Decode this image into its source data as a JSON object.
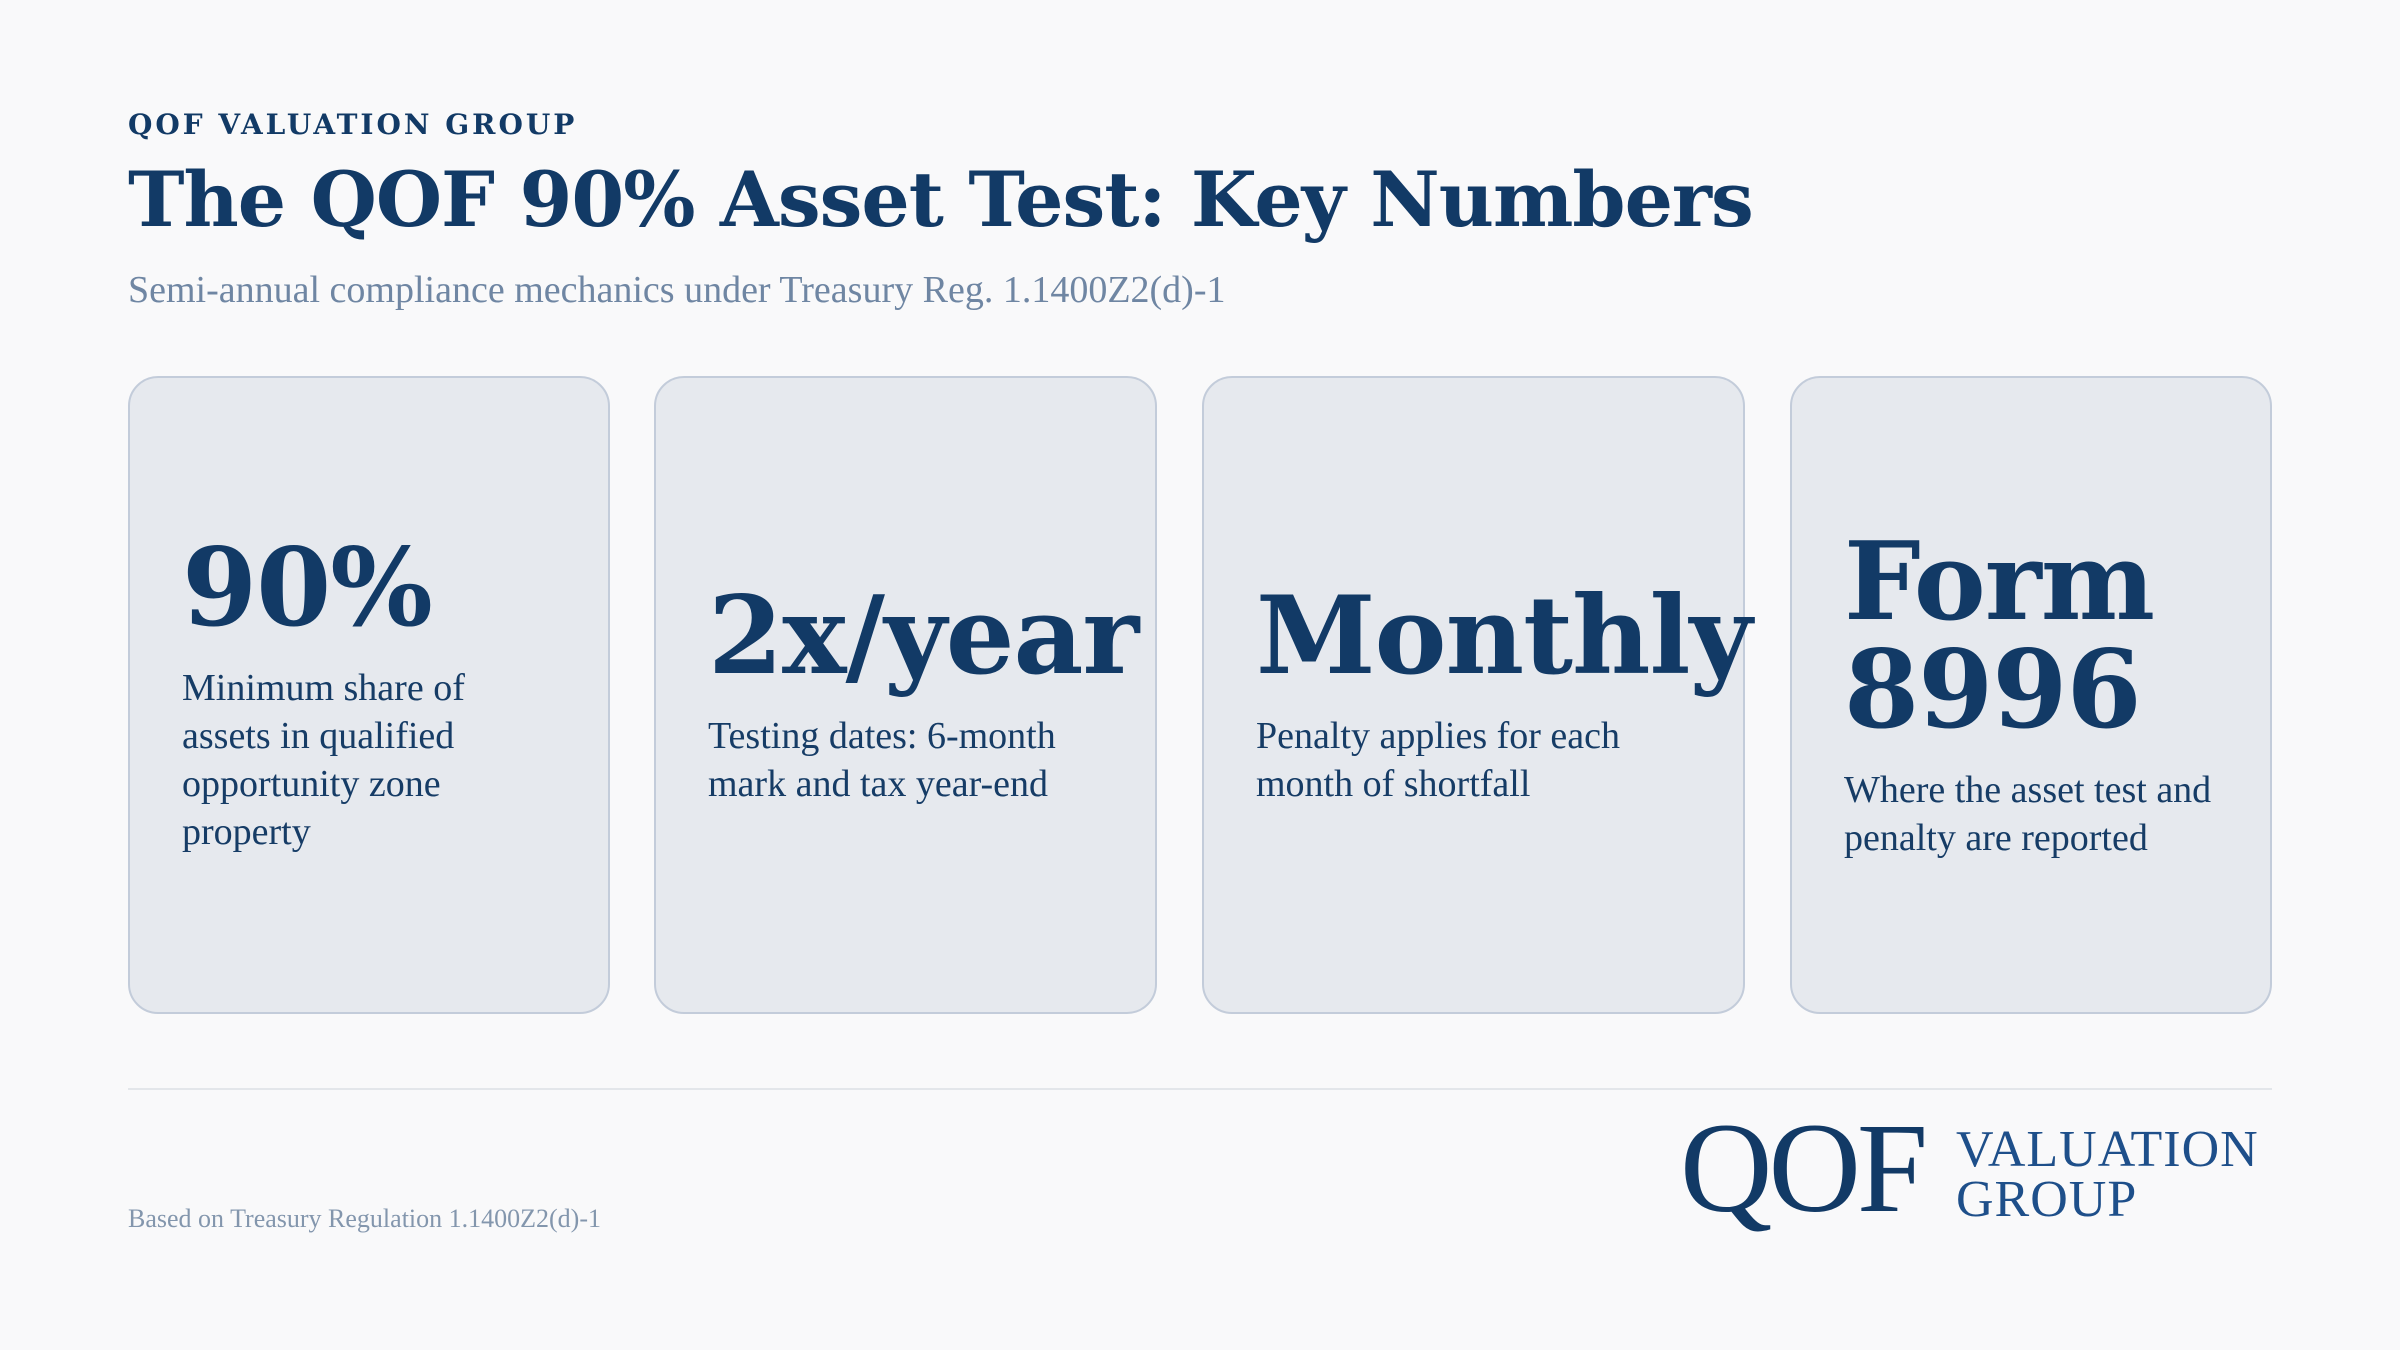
{
  "header": {
    "eyebrow": "QOF VALUATION GROUP",
    "title": "The QOF 90% Asset Test: Key Numbers",
    "subtitle": "Semi-annual compliance mechanics under Treasury Reg. 1.1400Z2(d)-1"
  },
  "cards": [
    {
      "value": "90%",
      "description": "Minimum share of assets in qualified opportunity zone property"
    },
    {
      "value": "2x/year",
      "description": "Testing dates: 6-month mark and tax year-end"
    },
    {
      "value": "Monthly",
      "description": "Penalty applies for each month of shortfall"
    },
    {
      "value_line1": "Form",
      "value_line2": "8996",
      "description": "Where the asset test and penalty are reported"
    }
  ],
  "footer": {
    "source": "Based on Treasury Regulation 1.1400Z2(d)-1",
    "logo": {
      "mark": "QOF",
      "line1": "VALUATION",
      "line2": "GROUP"
    }
  },
  "colors": {
    "navy": "#123a66",
    "muted": "#6f86a3",
    "card_bg": "#e6e9ee",
    "card_border": "#c3ccda",
    "page_bg": "#f9f9fa"
  }
}
